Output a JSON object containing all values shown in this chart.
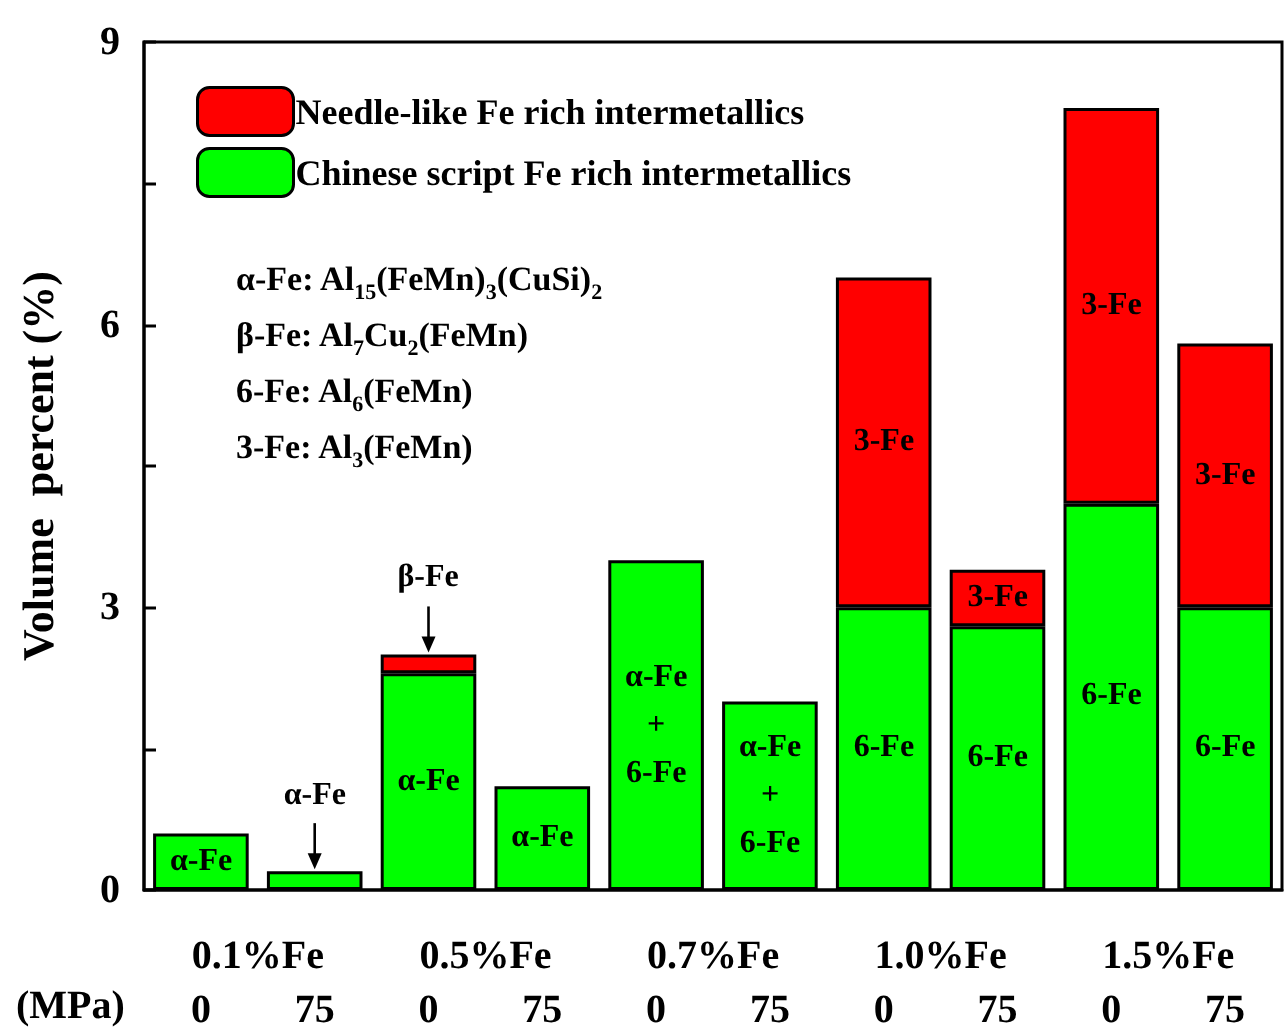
{
  "chart_data": {
    "type": "bar",
    "stacked": true,
    "xlabel": "(MPa)",
    "ylabel": "Volume  percent (%)",
    "categories": [
      "0",
      "75",
      "0",
      "75",
      "0",
      "75",
      "0",
      "75",
      "0",
      "75"
    ],
    "series": [
      {
        "name": "Chinese script Fe rich intermetallics",
        "color": "#00ff00",
        "values": [
          0.6,
          0.2,
          2.3,
          1.1,
          3.5,
          2.0,
          3.0,
          2.8,
          4.1,
          3.0
        ]
      },
      {
        "name": "Needle-like Fe rich intermetallics",
        "color": "#ff0000",
        "values": [
          null,
          null,
          0.2,
          null,
          null,
          null,
          3.5,
          0.6,
          4.2,
          2.8
        ]
      }
    ],
    "ylim": [
      0,
      9
    ],
    "yticks": [
      0,
      {
        "value": 1.5,
        "label": null
      },
      3,
      {
        "value": 4.5,
        "label": null
      },
      6,
      {
        "value": 7.5,
        "label": null
      },
      9
    ],
    "grid": false,
    "legend": "top left",
    "annotations": [
      "0.1%Fe",
      "0.5%Fe",
      "0.7%Fe",
      "1.0%Fe",
      "1.5%Fe",
      "α-Fe: Al$_{15}$(FeMn)$_{3}$(CuSi)$_{2}$",
      "β-Fe: Al$_{7}$Cu$_{2}$(FeMn)",
      "6-Fe: Al$_{6}$(FeMn)",
      "3-Fe: Al$_{3}$(FeMn)",
      "α-Fe",
      "α-Fe",
      "β-Fe",
      "α-Fe",
      "α-Fe",
      "α-Fe\n+\n6-Fe",
      "α-Fe\n+\n6-Fe",
      "6-Fe",
      "3-Fe",
      "6-Fe",
      "3-Fe",
      "6-Fe",
      "3-Fe",
      "6-Fe",
      "3-Fe"
    ]
  }
}
